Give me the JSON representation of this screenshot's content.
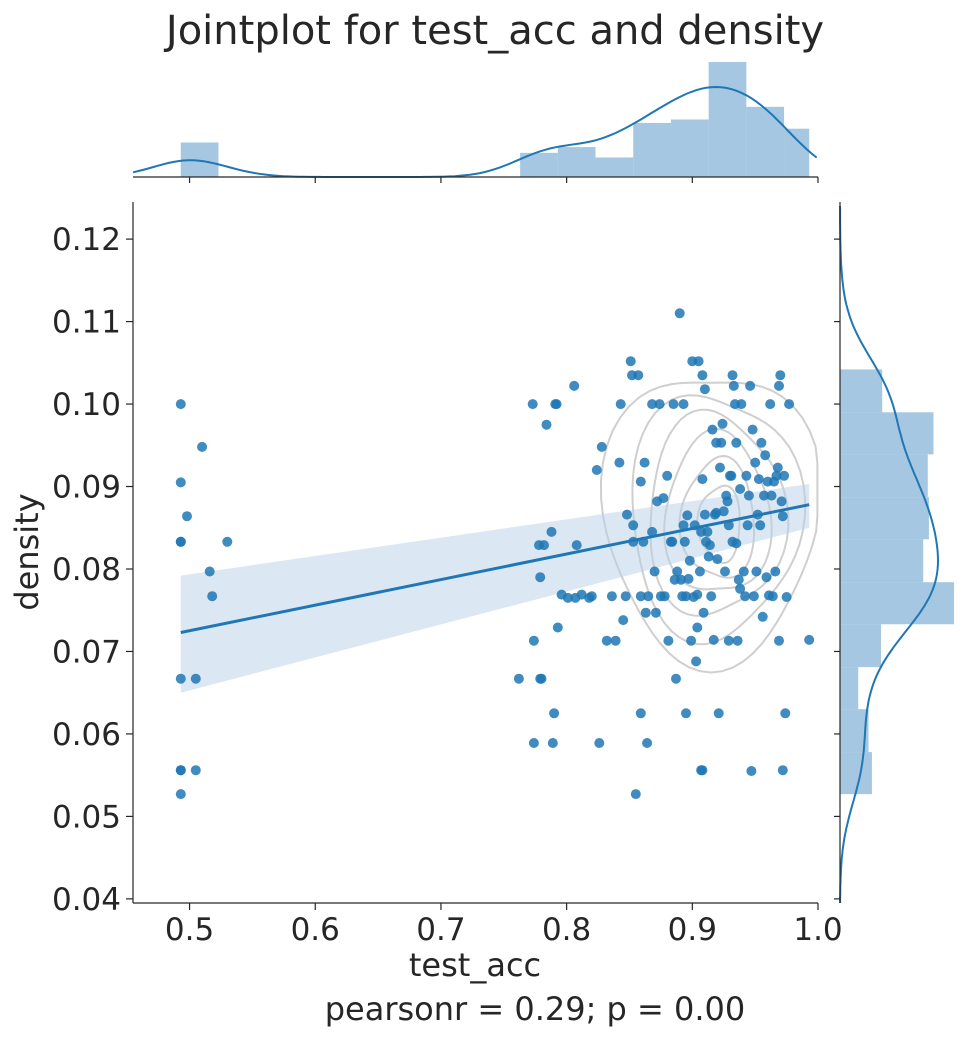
{
  "chart_data": {
    "type": "scatter",
    "title": "Jointplot for test_acc and density",
    "xlabel": "test_acc",
    "ylabel": "density",
    "annotation": "pearsonr = 0.29; p = 0.00",
    "xlim": [
      0.455,
      1.0
    ],
    "ylim": [
      0.0395,
      0.1245
    ],
    "x_ticks": [
      0.5,
      0.6,
      0.7,
      0.8,
      0.9,
      1.0
    ],
    "x_tick_labels": [
      "0.5",
      "0.6",
      "0.7",
      "0.8",
      "0.9",
      "1.0"
    ],
    "y_ticks": [
      0.04,
      0.05,
      0.06,
      0.07,
      0.08,
      0.09,
      0.1,
      0.11,
      0.12
    ],
    "y_tick_labels": [
      "0.04",
      "0.05",
      "0.06",
      "0.07",
      "0.08",
      "0.09",
      "0.10",
      "0.11",
      "0.12"
    ],
    "grid": false,
    "colors": {
      "points": "#1f77b4",
      "line": "#1f77b4",
      "ci_band": "#b8d0e8",
      "hist": "#7fafd4",
      "kde_contour": "#cfcfcf"
    },
    "regression": {
      "x": [
        0.493,
        0.993
      ],
      "y": [
        0.0723,
        0.0878
      ],
      "ci_lower": [
        0.065,
        0.085
      ],
      "ci_upper": [
        0.0792,
        0.0903
      ]
    },
    "points": [
      [
        0.493,
        0.1
      ],
      [
        0.493,
        0.0905
      ],
      [
        0.493,
        0.0833
      ],
      [
        0.493,
        0.0833
      ],
      [
        0.493,
        0.0667
      ],
      [
        0.493,
        0.0556
      ],
      [
        0.493,
        0.0527
      ],
      [
        0.493,
        0.0556
      ],
      [
        0.498,
        0.0864
      ],
      [
        0.505,
        0.0667
      ],
      [
        0.505,
        0.0556
      ],
      [
        0.51,
        0.0948
      ],
      [
        0.516,
        0.0797
      ],
      [
        0.518,
        0.0767
      ],
      [
        0.53,
        0.0833
      ],
      [
        0.762,
        0.0667
      ],
      [
        0.773,
        0.1
      ],
      [
        0.774,
        0.0713
      ],
      [
        0.774,
        0.0589
      ],
      [
        0.778,
        0.0829
      ],
      [
        0.779,
        0.079
      ],
      [
        0.779,
        0.0667
      ],
      [
        0.78,
        0.0667
      ],
      [
        0.782,
        0.0829
      ],
      [
        0.784,
        0.0975
      ],
      [
        0.788,
        0.0845
      ],
      [
        0.789,
        0.0589
      ],
      [
        0.79,
        0.0625
      ],
      [
        0.791,
        0.1
      ],
      [
        0.792,
        0.1
      ],
      [
        0.793,
        0.0729
      ],
      [
        0.796,
        0.0769
      ],
      [
        0.801,
        0.0765
      ],
      [
        0.806,
        0.1022
      ],
      [
        0.807,
        0.0765
      ],
      [
        0.808,
        0.0829
      ],
      [
        0.812,
        0.0769
      ],
      [
        0.818,
        0.0765
      ],
      [
        0.82,
        0.0767
      ],
      [
        0.824,
        0.092
      ],
      [
        0.826,
        0.0589
      ],
      [
        0.828,
        0.0948
      ],
      [
        0.832,
        0.0713
      ],
      [
        0.836,
        0.0767
      ],
      [
        0.839,
        0.0713
      ],
      [
        0.842,
        0.0929
      ],
      [
        0.843,
        0.1
      ],
      [
        0.845,
        0.0738
      ],
      [
        0.847,
        0.0767
      ],
      [
        0.848,
        0.0866
      ],
      [
        0.851,
        0.1052
      ],
      [
        0.852,
        0.1035
      ],
      [
        0.853,
        0.0853
      ],
      [
        0.853,
        0.0833
      ],
      [
        0.855,
        0.0527
      ],
      [
        0.857,
        0.1035
      ],
      [
        0.859,
        0.0906
      ],
      [
        0.859,
        0.0767
      ],
      [
        0.859,
        0.0625
      ],
      [
        0.861,
        0.0833
      ],
      [
        0.862,
        0.0929
      ],
      [
        0.863,
        0.0747
      ],
      [
        0.864,
        0.0589
      ],
      [
        0.865,
        0.0767
      ],
      [
        0.868,
        0.1
      ],
      [
        0.868,
        0.0845
      ],
      [
        0.87,
        0.0797
      ],
      [
        0.871,
        0.0747
      ],
      [
        0.872,
        0.0882
      ],
      [
        0.874,
        0.1
      ],
      [
        0.875,
        0.0767
      ],
      [
        0.877,
        0.0886
      ],
      [
        0.878,
        0.0767
      ],
      [
        0.88,
        0.0913
      ],
      [
        0.881,
        0.0713
      ],
      [
        0.883,
        0.0833
      ],
      [
        0.884,
        0.0833
      ],
      [
        0.885,
        0.1
      ],
      [
        0.886,
        0.0787
      ],
      [
        0.887,
        0.0667
      ],
      [
        0.888,
        0.0797
      ],
      [
        0.89,
        0.111
      ],
      [
        0.891,
        0.0787
      ],
      [
        0.892,
        0.0767
      ],
      [
        0.893,
        0.1
      ],
      [
        0.893,
        0.0853
      ],
      [
        0.894,
        0.0833
      ],
      [
        0.895,
        0.0625
      ],
      [
        0.895,
        0.0767
      ],
      [
        0.896,
        0.0865
      ],
      [
        0.897,
        0.0788
      ],
      [
        0.898,
        0.081
      ],
      [
        0.899,
        0.0713
      ],
      [
        0.9,
        0.1052
      ],
      [
        0.901,
        0.0766
      ],
      [
        0.902,
        0.0853
      ],
      [
        0.903,
        0.0688
      ],
      [
        0.904,
        0.0729
      ],
      [
        0.904,
        0.0769
      ],
      [
        0.905,
        0.1052
      ],
      [
        0.906,
        0.0797
      ],
      [
        0.907,
        0.0845
      ],
      [
        0.907,
        0.0556
      ],
      [
        0.908,
        0.0556
      ],
      [
        0.908,
        0.1035
      ],
      [
        0.908,
        0.0909
      ],
      [
        0.909,
        0.0747
      ],
      [
        0.91,
        0.0866
      ],
      [
        0.91,
        0.1018
      ],
      [
        0.911,
        0.0833
      ],
      [
        0.912,
        0.0845
      ],
      [
        0.913,
        0.0815
      ],
      [
        0.914,
        0.0829
      ],
      [
        0.915,
        0.0767
      ],
      [
        0.916,
        0.0969
      ],
      [
        0.917,
        0.0714
      ],
      [
        0.918,
        0.0866
      ],
      [
        0.919,
        0.0953
      ],
      [
        0.919,
        0.0868
      ],
      [
        0.92,
        0.0812
      ],
      [
        0.921,
        0.0625
      ],
      [
        0.922,
        0.0923
      ],
      [
        0.923,
        0.0953
      ],
      [
        0.924,
        0.0976
      ],
      [
        0.925,
        0.087
      ],
      [
        0.926,
        0.0797
      ],
      [
        0.927,
        0.0889
      ],
      [
        0.928,
        0.0882
      ],
      [
        0.929,
        0.0713
      ],
      [
        0.929,
        0.0853
      ],
      [
        0.93,
        0.0913
      ],
      [
        0.931,
        0.0913
      ],
      [
        0.932,
        0.0833
      ],
      [
        0.932,
        0.1035
      ],
      [
        0.933,
        0.1022
      ],
      [
        0.934,
        0.1
      ],
      [
        0.935,
        0.0953
      ],
      [
        0.935,
        0.0831
      ],
      [
        0.936,
        0.0713
      ],
      [
        0.937,
        0.0787
      ],
      [
        0.938,
        0.0776
      ],
      [
        0.938,
        0.0897
      ],
      [
        0.939,
        0.1
      ],
      [
        0.941,
        0.0797
      ],
      [
        0.942,
        0.0767
      ],
      [
        0.943,
        0.0913
      ],
      [
        0.944,
        0.0853
      ],
      [
        0.945,
        0.0889
      ],
      [
        0.946,
        0.1022
      ],
      [
        0.947,
        0.0555
      ],
      [
        0.948,
        0.0969
      ],
      [
        0.949,
        0.0767
      ],
      [
        0.95,
        0.0929
      ],
      [
        0.951,
        0.0797
      ],
      [
        0.952,
        0.0866
      ],
      [
        0.953,
        0.0909
      ],
      [
        0.954,
        0.0853
      ],
      [
        0.955,
        0.0953
      ],
      [
        0.956,
        0.0742
      ],
      [
        0.957,
        0.0889
      ],
      [
        0.958,
        0.0938
      ],
      [
        0.959,
        0.079
      ],
      [
        0.96,
        0.0906
      ],
      [
        0.961,
        0.0768
      ],
      [
        0.962,
        0.1
      ],
      [
        0.963,
        0.0889
      ],
      [
        0.964,
        0.0767
      ],
      [
        0.965,
        0.0906
      ],
      [
        0.966,
        0.0797
      ],
      [
        0.967,
        0.0913
      ],
      [
        0.968,
        0.0923
      ],
      [
        0.969,
        0.0713
      ],
      [
        0.969,
        0.1022
      ],
      [
        0.97,
        0.1035
      ],
      [
        0.971,
        0.0882
      ],
      [
        0.972,
        0.0864
      ],
      [
        0.972,
        0.0556
      ],
      [
        0.973,
        0.0913
      ],
      [
        0.974,
        0.0625
      ],
      [
        0.975,
        0.0766
      ],
      [
        0.977,
        0.1
      ],
      [
        0.993,
        0.0714
      ]
    ],
    "x_hist": {
      "bin_edges": [
        0.493,
        0.523,
        0.553,
        0.583,
        0.613,
        0.643,
        0.673,
        0.703,
        0.733,
        0.763,
        0.793,
        0.823,
        0.853,
        0.883,
        0.913,
        0.943,
        0.973,
        0.993
      ],
      "heights": [
        0.3,
        0,
        0,
        0,
        0,
        0,
        0,
        0,
        0,
        0.21,
        0.26,
        0.17,
        0.47,
        0.5,
        1.0,
        0.61,
        0.42
      ]
    },
    "y_hist": {
      "bin_edges": [
        0.0527,
        0.0578,
        0.063,
        0.0681,
        0.0733,
        0.0784,
        0.0836,
        0.0887,
        0.0939,
        0.099,
        0.1042,
        0.1093
      ],
      "widths": [
        0.28,
        0.25,
        0.16,
        0.36,
        1.0,
        0.73,
        0.78,
        0.77,
        0.82,
        0.37,
        0.0
      ]
    }
  }
}
